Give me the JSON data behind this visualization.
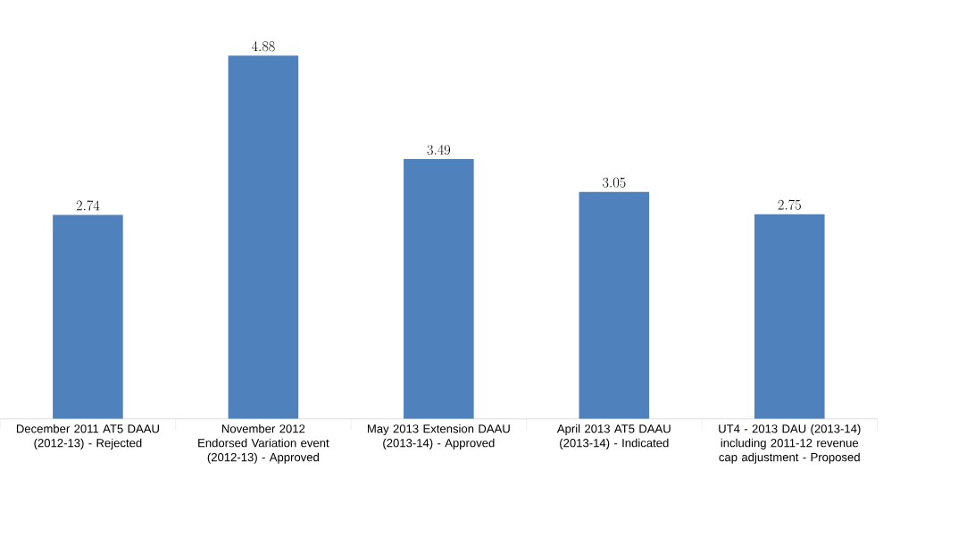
{
  "chart_data": {
    "type": "bar",
    "categories": [
      "December 2011 AT5 DAAU (2012-13) - Rejected",
      "November 2012 Endorsed Variation event (2012-13) - Approved",
      "May 2013 Extension DAAU (2013-14) - Approved",
      "April 2013 AT5 DAAU (2013-14) - Indicated",
      "UT4 - 2013 DAU (2013-14) including 2011-12 revenue cap adjustment - Proposed"
    ],
    "values": [
      2.74,
      4.88,
      3.49,
      3.05,
      2.75
    ],
    "color": "#4f81bd",
    "data_labels": true
  }
}
